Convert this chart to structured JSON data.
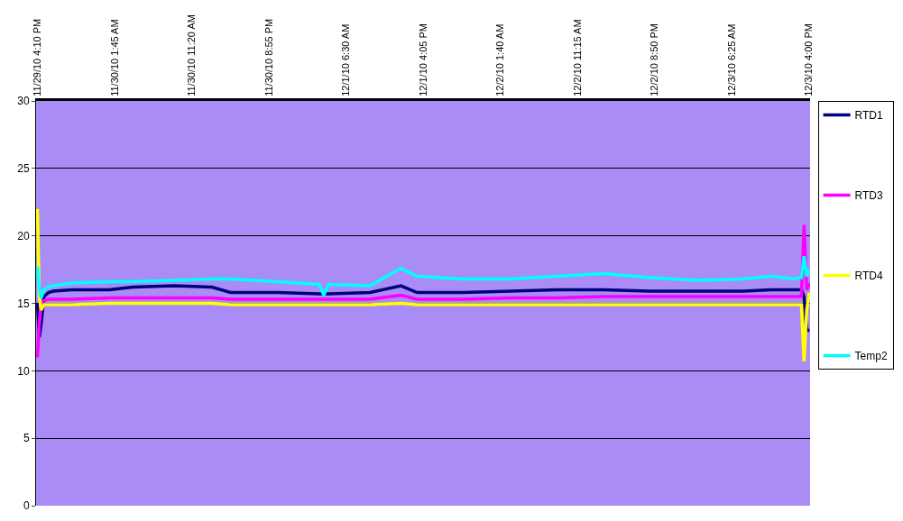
{
  "chart_data": {
    "type": "line",
    "x": [
      "--11-29T16:10",
      "--11-29T16:24",
      "--11-29T16:38",
      "--11-29T16:59",
      "--11-29T17:33",
      "--11-29T18:08",
      "--11-29T20:25",
      "--11-30T01:05",
      "--11-30T04:00",
      "--11-30T09:10",
      "--11-30T13:50",
      "--11-30T16:10",
      "--11-30T22:00",
      "--12-01T03:10",
      "--12-01T03:45",
      "--12-01T04:20",
      "--12-01T09:30",
      "--12-01T13:20",
      "--12-01T15:20",
      "--12-01T21:05",
      "--12-02T02:55",
      "--12-02T08:40",
      "--12-02T14:30",
      "--12-02T20:15",
      "--12-03T02:05",
      "--12-03T07:50",
      "--12-03T11:20",
      "--12-03T14:15",
      "--12-03T15:05",
      "--12-03T15:25",
      "--12-03T15:45",
      "--12-03T16:05"
    ],
    "series": [
      {
        "name": "RTD1",
        "color": "#000080",
        "values": [
          15.0,
          12.5,
          13.5,
          15.5,
          15.8,
          15.9,
          16.0,
          16.0,
          16.2,
          16.3,
          16.2,
          15.8,
          15.8,
          15.7,
          15.7,
          15.7,
          15.8,
          16.3,
          15.8,
          15.8,
          15.9,
          16.0,
          16.0,
          15.9,
          15.9,
          15.9,
          16.0,
          16.0,
          16.0,
          15.5,
          13.0,
          13.0
        ]
      },
      {
        "name": "RTD3",
        "color": "#ff00ff",
        "values": [
          11.0,
          13.5,
          15.0,
          15.2,
          15.3,
          15.3,
          15.3,
          15.4,
          15.4,
          15.4,
          15.4,
          15.3,
          15.3,
          15.3,
          15.3,
          15.3,
          15.3,
          15.6,
          15.3,
          15.3,
          15.4,
          15.4,
          15.5,
          15.5,
          15.5,
          15.5,
          15.5,
          15.5,
          15.5,
          20.8,
          16.0,
          16.5
        ]
      },
      {
        "name": "RTD4",
        "color": "#ffff00",
        "values": [
          22.0,
          15.5,
          14.5,
          14.9,
          14.9,
          14.9,
          14.9,
          15.0,
          15.0,
          15.0,
          15.0,
          14.9,
          14.9,
          14.9,
          14.9,
          14.9,
          14.9,
          15.0,
          14.9,
          14.9,
          14.9,
          14.9,
          14.9,
          14.9,
          14.9,
          14.9,
          14.9,
          14.9,
          14.9,
          10.7,
          14.5,
          15.8
        ]
      },
      {
        "name": "Temp2",
        "color": "#00ffff",
        "values": [
          17.7,
          16.0,
          15.4,
          16.0,
          16.2,
          16.3,
          16.5,
          16.6,
          16.6,
          16.7,
          16.8,
          16.8,
          16.6,
          16.4,
          15.6,
          16.4,
          16.3,
          17.6,
          17.0,
          16.8,
          16.8,
          17.0,
          17.2,
          16.9,
          16.7,
          16.8,
          17.0,
          16.8,
          16.9,
          18.5,
          17.0,
          17.5
        ]
      }
    ],
    "xlim": [
      "--11-29T16:00",
      "--12-03T16:10"
    ],
    "xticks": [
      {
        "value": "--11-29T16:10",
        "label": "11/29/10 4:10 PM"
      },
      {
        "value": "--11-30T01:45",
        "label": "11/30/10 1:45 AM"
      },
      {
        "value": "--11-30T11:20",
        "label": "11/30/10 11:20 AM"
      },
      {
        "value": "--11-30T20:55",
        "label": "11/30/10 8:55 PM"
      },
      {
        "value": "--12-01T06:30",
        "label": "12/1/10 6:30 AM"
      },
      {
        "value": "--12-01T16:05",
        "label": "12/1/10 4:05 PM"
      },
      {
        "value": "--12-02T01:40",
        "label": "12/2/10 1:40 AM"
      },
      {
        "value": "--12-02T11:15",
        "label": "12/2/10 11:15 AM"
      },
      {
        "value": "--12-02T20:50",
        "label": "12/2/10 8:50 PM"
      },
      {
        "value": "--12-03T06:25",
        "label": "12/3/10 6:25 AM"
      },
      {
        "value": "--12-03T16:00",
        "label": "12/3/10 4:00 PM"
      }
    ],
    "ylim": [
      0,
      30
    ],
    "yticks": [
      0,
      5,
      10,
      15,
      20,
      25,
      30
    ],
    "grid": "y",
    "legend": "right",
    "marker": "none",
    "line_style": "solid"
  }
}
